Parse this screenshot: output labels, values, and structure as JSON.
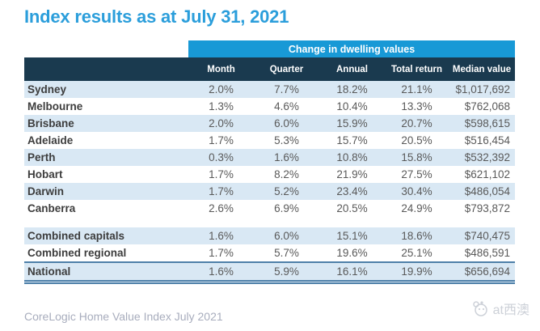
{
  "title": "Index results as at July 31, 2021",
  "chart_data": {
    "type": "table",
    "title": "Index results as at July 31, 2021",
    "group_header": "Change in dwelling values",
    "columns": [
      "Month",
      "Quarter",
      "Annual",
      "Total return",
      "Median value"
    ],
    "capital_rows": [
      {
        "name": "Sydney",
        "values": [
          "2.0%",
          "7.7%",
          "18.2%",
          "21.1%",
          "$1,017,692"
        ]
      },
      {
        "name": "Melbourne",
        "values": [
          "1.3%",
          "4.6%",
          "10.4%",
          "13.3%",
          "$762,068"
        ]
      },
      {
        "name": "Brisbane",
        "values": [
          "2.0%",
          "6.0%",
          "15.9%",
          "20.7%",
          "$598,615"
        ]
      },
      {
        "name": "Adelaide",
        "values": [
          "1.7%",
          "5.3%",
          "15.7%",
          "20.5%",
          "$516,454"
        ]
      },
      {
        "name": "Perth",
        "values": [
          "0.3%",
          "1.6%",
          "10.8%",
          "15.8%",
          "$532,392"
        ]
      },
      {
        "name": "Hobart",
        "values": [
          "1.7%",
          "8.2%",
          "21.9%",
          "27.5%",
          "$621,102"
        ]
      },
      {
        "name": "Darwin",
        "values": [
          "1.7%",
          "5.2%",
          "23.4%",
          "30.4%",
          "$486,054"
        ]
      },
      {
        "name": "Canberra",
        "values": [
          "2.6%",
          "6.9%",
          "20.5%",
          "24.9%",
          "$793,872"
        ]
      }
    ],
    "summary_rows": [
      {
        "name": "Combined capitals",
        "values": [
          "1.6%",
          "6.0%",
          "15.1%",
          "18.6%",
          "$740,475"
        ]
      },
      {
        "name": "Combined regional",
        "values": [
          "1.7%",
          "5.7%",
          "19.6%",
          "25.1%",
          "$486,591"
        ]
      }
    ],
    "national_row": {
      "name": "National",
      "values": [
        "1.6%",
        "5.9%",
        "16.1%",
        "19.9%",
        "$656,694"
      ]
    }
  },
  "footer": {
    "source_text": "CoreLogic Home Value Index July 2021"
  },
  "watermark": {
    "label": "at西澳"
  },
  "colors": {
    "title_blue": "#2B9EDB",
    "bar_blue": "#1899D6",
    "header_navy": "#1A3A4F",
    "row_shade": "#D9E8F4",
    "national_border": "#4E80A9",
    "name_text": "#3D3D3D",
    "value_text": "#595959",
    "footer_text": "#A8ADBD",
    "watermark_gray": "#CDD1D8"
  }
}
